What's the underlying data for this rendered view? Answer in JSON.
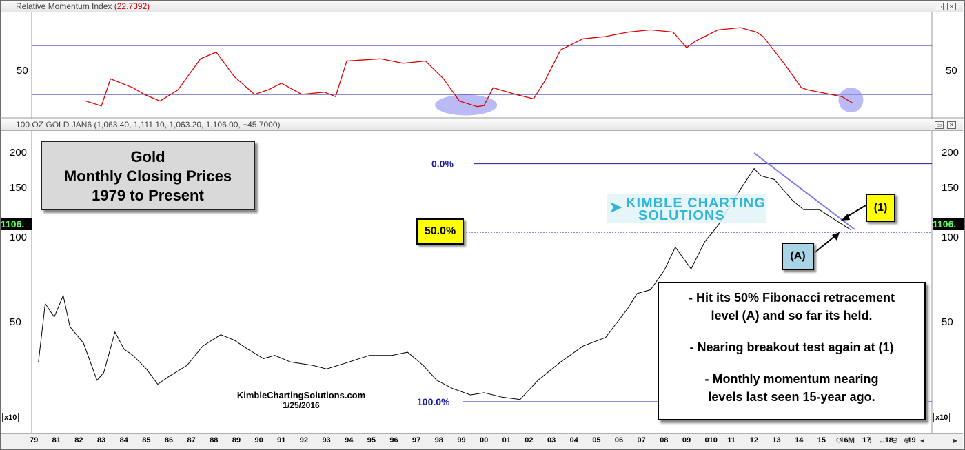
{
  "momentum_panel": {
    "title": "Relative Momentum Index",
    "value": "(22.7392)",
    "y_tick": "50"
  },
  "price_panel": {
    "title": "100 OZ GOLD JAN6 (1,063.40, 1,111.10, 1,063.20, 1,106.00, +45.7000)",
    "y_ticks": [
      "200",
      "150",
      "100",
      "50"
    ],
    "current_price": "1106.",
    "scale_label": "x10"
  },
  "title_box": {
    "lines": [
      "Gold",
      "Monthly Closing Prices",
      "1979 to Present"
    ]
  },
  "fib": {
    "top_label": "0.0%",
    "mid_label": "50.0%",
    "bottom_label": "100.0%"
  },
  "tags": {
    "one": "(1)",
    "a": "(A)"
  },
  "commentary": {
    "line1": "- Hit its 50% Fibonacci retracement",
    "line2": "level (A) and so far its held.",
    "line3": "- Nearing breakout test again at (1)",
    "line4": "- Monthly momentum nearing",
    "line5": "levels last seen 15-year ago."
  },
  "watermark": {
    "line1": "KIMBLE CHARTING",
    "line2": "SOLUTIONS"
  },
  "credit": {
    "site": "KimbleChartingSolutions.com",
    "date": "1/25/2016"
  },
  "x_axis": [
    "79",
    "81",
    "82",
    "83",
    "84",
    "85",
    "86",
    "87",
    "88",
    "89",
    "90",
    "91",
    "92",
    "93",
    "94",
    "95",
    "96",
    "97",
    "98",
    "99",
    "00",
    "01",
    "02",
    "03",
    "04",
    "05",
    "06",
    "07",
    "08",
    "09",
    "010",
    "11",
    "12",
    "13",
    "14",
    "15",
    "16",
    "17",
    "18",
    "19"
  ],
  "colors": {
    "price": "#000000",
    "momentum": "#e00000",
    "guides": "#1a1aa8",
    "highlight": "#8c8cf0",
    "tag_yellow": "#ffff00",
    "tag_blue": "#a8d4e6"
  },
  "chart_data": [
    {
      "type": "line",
      "title": "Relative Momentum Index",
      "x": [
        1981.9,
        1982.6,
        1983,
        1984,
        1984.5,
        1985.2,
        1986,
        1987,
        1987.7,
        1988.5,
        1989.4,
        1990,
        1990.6,
        1991.5,
        1992.5,
        1993,
        1993.5,
        1995,
        1996,
        1997,
        1997.8,
        1998.5,
        1999.3,
        1999.6,
        2000,
        2001,
        2001.8,
        2002.3,
        2003,
        2004,
        2005,
        2006,
        2007,
        2008,
        2008.6,
        2009,
        2010,
        2011,
        2011.7,
        2012,
        2013,
        2013.7,
        2014,
        2015,
        2015.5,
        2016
      ],
      "y": [
        39,
        36.8,
        49,
        45,
        42,
        39,
        44,
        58,
        61,
        50,
        42,
        44,
        47,
        42,
        43,
        41,
        57,
        58,
        56,
        57,
        49,
        39,
        36.5,
        37,
        45,
        42,
        40,
        48,
        62,
        67,
        68,
        70,
        71,
        70,
        63,
        66,
        71,
        72,
        70,
        68,
        55,
        45,
        44,
        42,
        41,
        38
      ],
      "y_ticks": [
        50
      ],
      "ylim": [
        33,
        77
      ],
      "levels": [
        42,
        64
      ]
    },
    {
      "type": "line",
      "title": "Gold Monthly Closing Prices 1979 to Present",
      "series": [
        {
          "name": "100 OZ GOLD JAN6",
          "x": [
            1979.8,
            1980.1,
            1980.5,
            1980.9,
            1981.2,
            1981.8,
            1982.4,
            1982.7,
            1983.2,
            1983.6,
            1984,
            1984.6,
            1985.1,
            1985.6,
            1986.4,
            1987.1,
            1987.9,
            1988.5,
            1989.1,
            1989.8,
            1990.3,
            1991,
            1992,
            1992.6,
            1993.6,
            1994.5,
            1995.5,
            1996.2,
            1996.9,
            1997.5,
            1998.2,
            1999,
            1999.6,
            2000.4,
            2001.2,
            2002,
            2003,
            2004,
            2005,
            2006,
            2006.4,
            2007,
            2007.6,
            2008.1,
            2008.8,
            2009.4,
            2010,
            2010.8,
            2011.6,
            2011.9,
            2012.5,
            2013.3,
            2013.8,
            2014.5,
            2015.2,
            2015.9
          ],
          "y": [
            36,
            58,
            52,
            62,
            48,
            42,
            31,
            33,
            46,
            40,
            38,
            34,
            30,
            32,
            35,
            41,
            45,
            43,
            40,
            37,
            38,
            36,
            35,
            34,
            36,
            38,
            38,
            39,
            35,
            31,
            29,
            27.5,
            28,
            27,
            26.5,
            31,
            36,
            41,
            44,
            56,
            63,
            65,
            76,
            92,
            77,
            96,
            110,
            140,
            175,
            165,
            160,
            135,
            125,
            125,
            115,
            106
          ],
          "values": [
            36,
            58,
            52,
            62,
            48,
            42,
            31,
            33,
            46,
            40,
            38,
            34,
            30,
            32,
            35,
            41,
            45,
            43,
            40,
            37,
            38,
            36,
            35,
            34,
            36,
            38,
            38,
            39,
            35,
            31,
            29,
            27.5,
            28,
            27,
            26.5,
            31,
            36,
            41,
            44,
            56,
            63,
            65,
            76,
            92,
            77,
            96,
            110,
            140,
            175,
            165,
            160,
            135,
            125,
            125,
            115,
            106
          ]
        }
      ],
      "ylabel": "x10",
      "y_ticks": [
        50,
        100,
        150,
        200
      ],
      "yscale": "log",
      "ylim": [
        25,
        225
      ],
      "fib_levels": [
        {
          "label": "0.0%",
          "value": 182
        },
        {
          "label": "50.0%",
          "value": 104
        },
        {
          "label": "100.0%",
          "value": 26
        }
      ],
      "annotations": [
        "(1)",
        "(A)"
      ]
    }
  ]
}
